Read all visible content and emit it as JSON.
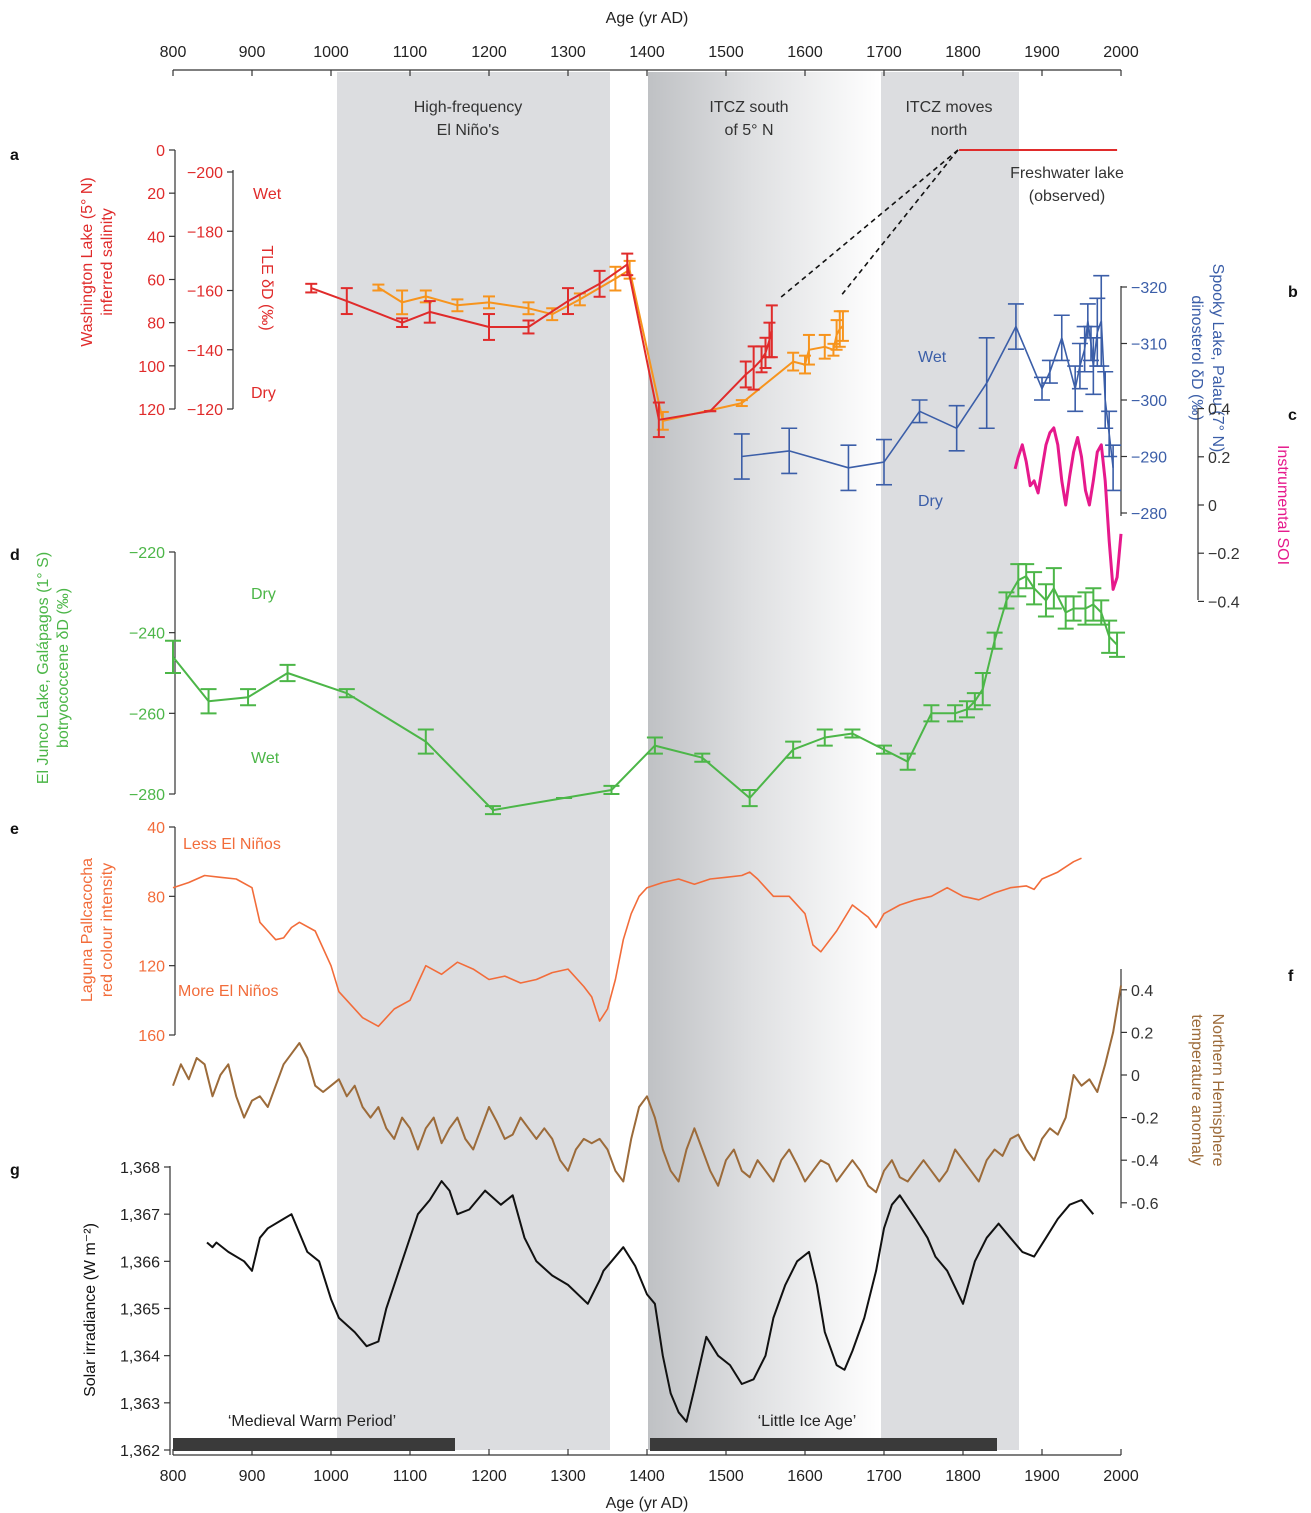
{
  "figure": {
    "top_axis": {
      "label": "Age (yr AD)",
      "ticks": [
        "800",
        "900",
        "1000",
        "1100",
        "1200",
        "1300",
        "1400",
        "1500",
        "1600",
        "1700",
        "1800",
        "1900",
        "2000"
      ]
    },
    "bottom_axis": {
      "label": "Age (yr AD)",
      "ticks": [
        "800",
        "900",
        "1000",
        "1100",
        "1200",
        "1300",
        "1400",
        "1500",
        "1600",
        "1700",
        "1800",
        "1900",
        "2000"
      ]
    },
    "panel_letters": {
      "a": "a",
      "b": "b",
      "c": "c",
      "d": "d",
      "e": "e",
      "f": "f",
      "g": "g"
    },
    "annotations": {
      "high_frequency_1": "High-frequency",
      "high_frequency_2": "El Niño's",
      "itcz_south_1": "ITCZ south",
      "itcz_south_2": "of 5° N",
      "itcz_north_1": "ITCZ moves",
      "itcz_north_2": "north",
      "freshwater_1": "Freshwater lake",
      "freshwater_2": "(observed)",
      "a_wet": "Wet",
      "a_dry": "Dry",
      "b_wet": "Wet",
      "b_dry": "Dry",
      "d_dry": "Dry",
      "d_wet": "Wet",
      "e_less": "Less El Niños",
      "e_more": "More El Niños",
      "medieval": "‘Medieval Warm Period’",
      "little_ice_age": "‘Little Ice Age’"
    },
    "colors": {
      "panel_a_salinity": "#e02b2b",
      "panel_a_tle": "#f7941d",
      "panel_b": "#3b5ea8",
      "panel_c": "#e6198c",
      "panel_d": "#4cb648",
      "panel_e": "#f26c3a",
      "panel_f": "#9c6b3a",
      "panel_g": "#111111",
      "shade": "#dcdde0"
    }
  },
  "chart_data": [
    {
      "panel": "a",
      "type": "line",
      "title": "",
      "ylabel_left_1": "Washington Lake (5° N)",
      "ylabel_left_2": "inferred salinity",
      "ylabel_tle": "TLE δD (‰)",
      "y_salinity": {
        "ticks": [
          "0",
          "20",
          "40",
          "60",
          "80",
          "100",
          "120"
        ],
        "ylim": [
          0,
          120
        ]
      },
      "y_tle": {
        "ticks": [
          "−200",
          "−180",
          "−160",
          "−140",
          "−120"
        ],
        "ylim": [
          -206,
          -120
        ]
      },
      "series": [
        {
          "name": "salinity (red)",
          "x": [
            975,
            1020,
            1090,
            1125,
            1200,
            1250,
            1300,
            1340,
            1375,
            1415,
            1480,
            1525,
            1535,
            1545,
            1550,
            1555,
            1558
          ],
          "y": [
            64,
            70,
            80,
            75,
            82,
            82,
            70,
            62,
            53,
            125,
            121,
            104,
            101,
            97,
            94,
            88,
            84
          ],
          "err": [
            2,
            6,
            2,
            5,
            6,
            3,
            6,
            6,
            5,
            8,
            0,
            6,
            10,
            6,
            7,
            8,
            12
          ]
        },
        {
          "name": "TLE (orange)",
          "x": [
            1060,
            1090,
            1120,
            1160,
            1200,
            1250,
            1280,
            1315,
            1360,
            1378,
            1420,
            1520,
            1585,
            1600,
            1605,
            1625,
            1636,
            1640,
            1644,
            1648
          ],
          "y": [
            -161,
            -156,
            -158,
            -155,
            -156,
            -154,
            -152,
            -157,
            -164,
            -167,
            -116,
            -122,
            -136,
            -135,
            -140,
            -141,
            -140,
            -145,
            -147,
            -148
          ],
          "err": [
            1,
            4,
            2,
            2,
            2,
            2,
            2,
            2,
            4,
            3,
            3,
            1,
            3,
            3,
            5,
            4,
            2,
            5,
            6,
            5
          ]
        },
        {
          "name": "freshwater lake",
          "x": [
            1795,
            1995
          ],
          "y": [
            0,
            0
          ]
        }
      ]
    },
    {
      "panel": "b",
      "type": "line",
      "title": "",
      "ylabel_1": "Spooky Lake, Palau (7° N)",
      "ylabel_2": "dinosterol δD (‰)",
      "y_ticks": [
        "−320",
        "−310",
        "−300",
        "−290",
        "−280"
      ],
      "ylim": [
        -280,
        -323
      ],
      "x": [
        1520,
        1580,
        1655,
        1700,
        1745,
        1792,
        1830,
        1867,
        1900,
        1910,
        1925,
        1942,
        1948,
        1954,
        1958,
        1962,
        1965,
        1970,
        1975,
        1980,
        1985,
        1990
      ],
      "y": [
        -290,
        -291,
        -288,
        -289,
        -298,
        -295,
        -303,
        -313,
        -302,
        -305,
        -311,
        -302,
        -306,
        -309,
        -314,
        -310,
        -306,
        -312,
        -314,
        -300,
        -294,
        -288
      ],
      "err": [
        4,
        4,
        4,
        4,
        2,
        4,
        8,
        4,
        2,
        2,
        4,
        4,
        4,
        4,
        3,
        3,
        5,
        6,
        8,
        5,
        4,
        4
      ]
    },
    {
      "panel": "c",
      "type": "line",
      "title": "",
      "ylabel": "Instrumental SOI",
      "y_ticks": [
        "0.4",
        "0.2",
        "0",
        "−0.2",
        "−0.4"
      ],
      "ylim": [
        -0.4,
        0.4
      ],
      "x": [
        1866,
        1870,
        1875,
        1880,
        1885,
        1890,
        1895,
        1900,
        1905,
        1910,
        1915,
        1920,
        1925,
        1930,
        1935,
        1940,
        1945,
        1950,
        1955,
        1960,
        1965,
        1970,
        1975,
        1980,
        1985,
        1990,
        1995,
        2000
      ],
      "y": [
        0.15,
        0.2,
        0.25,
        0.18,
        0.08,
        0.1,
        0.05,
        0.15,
        0.25,
        0.3,
        0.32,
        0.25,
        0.1,
        0.0,
        0.12,
        0.22,
        0.28,
        0.2,
        0.06,
        0.0,
        0.1,
        0.22,
        0.25,
        0.1,
        -0.15,
        -0.35,
        -0.3,
        -0.12
      ]
    },
    {
      "panel": "d",
      "type": "line",
      "title": "",
      "ylabel_1": "El Junco Lake, Galápagos (1° S)",
      "ylabel_2": "botryococcene δD (‰)",
      "y_ticks": [
        "−220",
        "−240",
        "−260",
        "−280"
      ],
      "ylim": [
        -280,
        -220
      ],
      "x": [
        800,
        845,
        895,
        945,
        1020,
        1120,
        1205,
        1295,
        1355,
        1410,
        1470,
        1530,
        1585,
        1625,
        1660,
        1700,
        1730,
        1760,
        1790,
        1805,
        1815,
        1825,
        1840,
        1855,
        1870,
        1880,
        1890,
        1905,
        1915,
        1930,
        1940,
        1955,
        1965,
        1975,
        1985,
        1995
      ],
      "y": [
        -246,
        -257,
        -256,
        -250,
        -255,
        -267,
        -284,
        -281,
        -279,
        -268,
        -271,
        -281,
        -269,
        -266,
        -265,
        -269,
        -272,
        -260,
        -260,
        -259,
        -257,
        -254,
        -242,
        -232,
        -227,
        -226,
        -229,
        -232,
        -229,
        -235,
        -234,
        -234,
        -233,
        -235,
        -241,
        -243
      ],
      "err": [
        4,
        3,
        2,
        2,
        1,
        3,
        1,
        0,
        1,
        2,
        1,
        2,
        2,
        2,
        1,
        1,
        2,
        2,
        2,
        2,
        2,
        4,
        2,
        2,
        4,
        3,
        4,
        4,
        5,
        4,
        3,
        4,
        4,
        3,
        4,
        3
      ]
    },
    {
      "panel": "e",
      "type": "line",
      "title": "",
      "ylabel_1": "Laguna Pallcacocha",
      "ylabel_2": "red colour intensity",
      "y_ticks": [
        "40",
        "80",
        "120",
        "160"
      ],
      "ylim": [
        40,
        160
      ],
      "x": [
        800,
        820,
        840,
        860,
        880,
        900,
        910,
        920,
        930,
        940,
        950,
        960,
        980,
        1000,
        1010,
        1020,
        1040,
        1060,
        1080,
        1100,
        1110,
        1120,
        1140,
        1160,
        1180,
        1200,
        1220,
        1240,
        1260,
        1280,
        1300,
        1320,
        1330,
        1340,
        1350,
        1360,
        1370,
        1380,
        1390,
        1400,
        1420,
        1440,
        1460,
        1480,
        1500,
        1520,
        1530,
        1540,
        1550,
        1560,
        1580,
        1600,
        1610,
        1620,
        1640,
        1660,
        1680,
        1690,
        1700,
        1720,
        1740,
        1760,
        1780,
        1800,
        1820,
        1840,
        1860,
        1880,
        1890,
        1900,
        1920,
        1940,
        1950
      ],
      "y": [
        75,
        72,
        68,
        69,
        70,
        75,
        95,
        100,
        105,
        104,
        98,
        95,
        100,
        120,
        135,
        140,
        150,
        155,
        145,
        140,
        130,
        120,
        125,
        118,
        122,
        128,
        126,
        130,
        128,
        124,
        122,
        132,
        138,
        152,
        145,
        128,
        105,
        90,
        80,
        75,
        72,
        70,
        73,
        70,
        69,
        68,
        66,
        70,
        75,
        80,
        80,
        90,
        108,
        112,
        100,
        85,
        92,
        98,
        90,
        85,
        82,
        80,
        75,
        80,
        82,
        78,
        75,
        74,
        76,
        70,
        66,
        60,
        58
      ]
    },
    {
      "panel": "f",
      "type": "line",
      "title": "",
      "ylabel_1": "Northern Hemisphere",
      "ylabel_2": "temperature anomaly",
      "y_ticks": [
        "0.4",
        "0.2",
        "0",
        "-0.2",
        "-0.4",
        "-0.6"
      ],
      "ylim": [
        -0.6,
        0.4
      ],
      "x": [
        800,
        810,
        820,
        830,
        840,
        850,
        860,
        870,
        880,
        890,
        900,
        910,
        920,
        930,
        940,
        950,
        960,
        970,
        980,
        990,
        1000,
        1010,
        1020,
        1030,
        1040,
        1050,
        1060,
        1070,
        1080,
        1090,
        1100,
        1110,
        1120,
        1130,
        1140,
        1150,
        1160,
        1170,
        1180,
        1190,
        1200,
        1210,
        1220,
        1230,
        1240,
        1250,
        1260,
        1270,
        1280,
        1290,
        1300,
        1310,
        1320,
        1330,
        1340,
        1350,
        1360,
        1370,
        1380,
        1390,
        1400,
        1410,
        1420,
        1430,
        1440,
        1450,
        1460,
        1470,
        1480,
        1490,
        1500,
        1510,
        1520,
        1530,
        1540,
        1550,
        1560,
        1570,
        1580,
        1590,
        1600,
        1610,
        1620,
        1630,
        1640,
        1650,
        1660,
        1670,
        1680,
        1690,
        1700,
        1710,
        1720,
        1730,
        1740,
        1750,
        1760,
        1770,
        1780,
        1790,
        1800,
        1810,
        1820,
        1830,
        1840,
        1850,
        1860,
        1870,
        1880,
        1890,
        1900,
        1910,
        1920,
        1930,
        1940,
        1950,
        1960,
        1970,
        1980,
        1990,
        2000
      ],
      "y": [
        -0.05,
        0.05,
        -0.02,
        0.08,
        0.05,
        -0.1,
        0.0,
        0.05,
        -0.1,
        -0.2,
        -0.12,
        -0.1,
        -0.15,
        -0.05,
        0.05,
        0.1,
        0.15,
        0.08,
        -0.05,
        -0.08,
        -0.05,
        -0.02,
        -0.1,
        -0.05,
        -0.15,
        -0.2,
        -0.15,
        -0.25,
        -0.3,
        -0.2,
        -0.25,
        -0.35,
        -0.25,
        -0.2,
        -0.32,
        -0.25,
        -0.2,
        -0.3,
        -0.35,
        -0.25,
        -0.15,
        -0.22,
        -0.3,
        -0.28,
        -0.2,
        -0.25,
        -0.3,
        -0.25,
        -0.3,
        -0.4,
        -0.45,
        -0.35,
        -0.3,
        -0.32,
        -0.3,
        -0.35,
        -0.45,
        -0.5,
        -0.3,
        -0.15,
        -0.1,
        -0.2,
        -0.35,
        -0.45,
        -0.5,
        -0.35,
        -0.25,
        -0.35,
        -0.45,
        -0.52,
        -0.4,
        -0.35,
        -0.45,
        -0.48,
        -0.4,
        -0.45,
        -0.5,
        -0.4,
        -0.35,
        -0.42,
        -0.5,
        -0.45,
        -0.4,
        -0.42,
        -0.5,
        -0.45,
        -0.4,
        -0.45,
        -0.52,
        -0.55,
        -0.45,
        -0.4,
        -0.48,
        -0.5,
        -0.45,
        -0.4,
        -0.45,
        -0.5,
        -0.45,
        -0.35,
        -0.4,
        -0.45,
        -0.5,
        -0.4,
        -0.35,
        -0.38,
        -0.3,
        -0.28,
        -0.35,
        -0.4,
        -0.3,
        -0.25,
        -0.28,
        -0.2,
        0.0,
        -0.05,
        -0.02,
        -0.08,
        0.05,
        0.2,
        0.42
      ]
    },
    {
      "panel": "g",
      "type": "line",
      "title": "",
      "ylabel": "Solar irradiance (W m⁻²)",
      "y_ticks": [
        "1,368",
        "1,367",
        "1,366",
        "1,365",
        "1,364",
        "1,363",
        "1,362"
      ],
      "ylim": [
        1362,
        1368
      ],
      "x": [
        843,
        850,
        855,
        870,
        890,
        900,
        910,
        920,
        940,
        950,
        960,
        970,
        985,
        1000,
        1010,
        1030,
        1045,
        1060,
        1070,
        1090,
        1110,
        1125,
        1140,
        1150,
        1160,
        1175,
        1195,
        1215,
        1230,
        1245,
        1260,
        1280,
        1300,
        1325,
        1340,
        1345,
        1355,
        1370,
        1385,
        1400,
        1410,
        1420,
        1430,
        1440,
        1450,
        1460,
        1475,
        1490,
        1505,
        1520,
        1535,
        1550,
        1560,
        1575,
        1590,
        1605,
        1615,
        1625,
        1640,
        1650,
        1660,
        1675,
        1690,
        1700,
        1710,
        1720,
        1740,
        1755,
        1765,
        1780,
        1800,
        1815,
        1830,
        1845,
        1860,
        1875,
        1890,
        1905,
        1920,
        1935,
        1950,
        1965
      ],
      "y": [
        1366.4,
        1366.3,
        1366.4,
        1366.2,
        1366.0,
        1365.8,
        1366.5,
        1366.7,
        1366.9,
        1367.0,
        1366.6,
        1366.2,
        1366.0,
        1365.2,
        1364.8,
        1364.5,
        1364.2,
        1364.3,
        1365.0,
        1366.0,
        1367.0,
        1367.3,
        1367.7,
        1367.5,
        1367.0,
        1367.1,
        1367.5,
        1367.2,
        1367.4,
        1366.5,
        1366.0,
        1365.7,
        1365.5,
        1365.1,
        1365.6,
        1365.8,
        1366.0,
        1366.3,
        1365.9,
        1365.3,
        1365.1,
        1364.0,
        1363.2,
        1362.8,
        1362.6,
        1363.3,
        1364.4,
        1364.0,
        1363.8,
        1363.4,
        1363.5,
        1364.0,
        1364.8,
        1365.5,
        1366.0,
        1366.2,
        1365.5,
        1364.5,
        1363.8,
        1363.7,
        1364.1,
        1364.8,
        1365.8,
        1366.7,
        1367.2,
        1367.4,
        1366.9,
        1366.5,
        1366.1,
        1365.8,
        1365.1,
        1366.0,
        1366.5,
        1366.8,
        1366.5,
        1366.2,
        1366.1,
        1366.5,
        1366.9,
        1367.2,
        1367.3,
        1367.0
      ]
    }
  ]
}
